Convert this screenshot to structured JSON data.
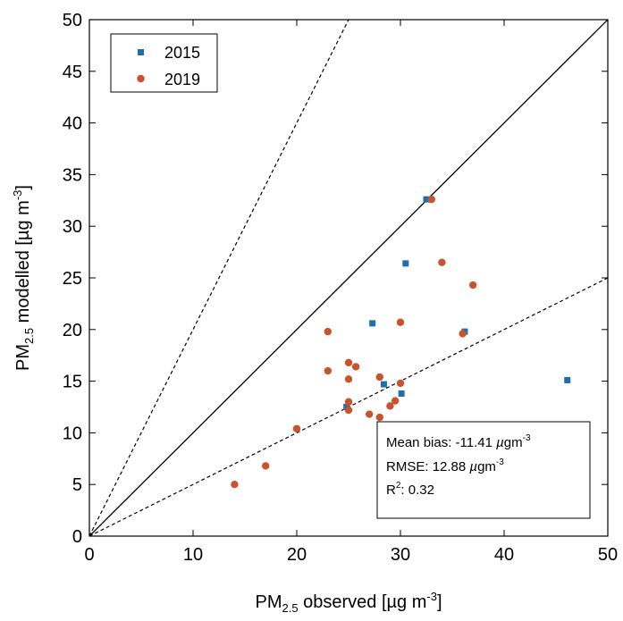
{
  "chart_data": {
    "type": "scatter",
    "title": "",
    "xlabel": {
      "base": "PM",
      "sub": "2.5",
      "rest": " observed [µg m",
      "sup": "-3",
      "end": "]"
    },
    "ylabel": {
      "base": "PM",
      "sub": "2.5",
      "rest": " modelled [µg m",
      "sup": "-3",
      "end": "]"
    },
    "xlim": [
      0,
      50
    ],
    "ylim": [
      0,
      50
    ],
    "xticks": [
      "0",
      "10",
      "20",
      "30",
      "40",
      "50"
    ],
    "yticks": [
      "0",
      "5",
      "10",
      "15",
      "20",
      "25",
      "30",
      "35",
      "40",
      "45",
      "50"
    ],
    "grid": false,
    "legend_position": "top-left",
    "reference_lines": [
      {
        "style": "solid",
        "slope": 1
      },
      {
        "style": "dashed",
        "slope": 2
      },
      {
        "style": "dashed",
        "slope": 0.5
      }
    ],
    "series": [
      {
        "name": "2015",
        "marker": "square",
        "color": "#1f6fb0",
        "points": [
          [
            32.5,
            32.6
          ],
          [
            30.5,
            26.4
          ],
          [
            27.3,
            20.6
          ],
          [
            36.2,
            19.8
          ],
          [
            28.4,
            14.7
          ],
          [
            30.1,
            13.8
          ],
          [
            24.8,
            12.5
          ],
          [
            46.1,
            15.1
          ]
        ]
      },
      {
        "name": "2019",
        "marker": "circle",
        "color": "#c8532c",
        "points": [
          [
            33.0,
            32.6
          ],
          [
            34.0,
            26.5
          ],
          [
            37.0,
            24.3
          ],
          [
            36.0,
            19.6
          ],
          [
            30.0,
            20.7
          ],
          [
            23.0,
            19.8
          ],
          [
            23.0,
            16.0
          ],
          [
            25.0,
            16.8
          ],
          [
            25.7,
            16.4
          ],
          [
            25.0,
            15.2
          ],
          [
            28.0,
            15.4
          ],
          [
            30.0,
            14.8
          ],
          [
            25.0,
            13.0
          ],
          [
            29.5,
            13.1
          ],
          [
            29.0,
            12.6
          ],
          [
            25.0,
            12.2
          ],
          [
            27.0,
            11.8
          ],
          [
            28.0,
            11.5
          ],
          [
            20.0,
            10.4
          ],
          [
            17.0,
            6.8
          ],
          [
            14.0,
            5.0
          ]
        ]
      }
    ],
    "annotation": {
      "mean_bias": {
        "label": "Mean bias: ",
        "value": "-11.41",
        "unit_pre": " ",
        "unit_mu": "µ",
        "unit_rest": "gm",
        "unit_sup": "-3"
      },
      "rmse": {
        "label": "RMSE: ",
        "value": "12.88",
        "unit_pre": " ",
        "unit_mu": "µ",
        "unit_rest": "gm",
        "unit_sup": "-3"
      },
      "r2": {
        "label": "R",
        "sup": "2",
        "rest": ": ",
        "value": "0.32"
      }
    }
  }
}
